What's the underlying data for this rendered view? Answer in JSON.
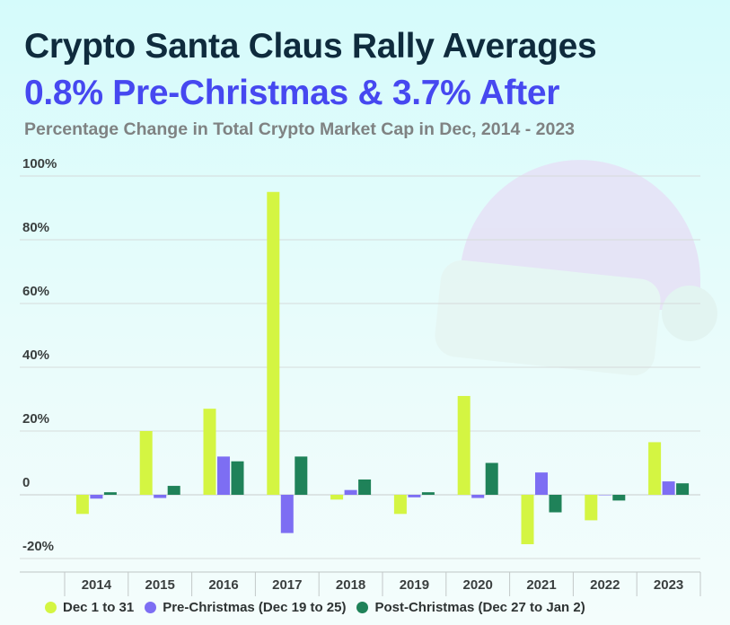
{
  "header": {
    "title": "Crypto Santa Claus Rally Averages",
    "subtitle": "0.8% Pre-Christmas & 3.7% After",
    "caption": "Percentage Change in Total Crypto Market Cap in Dec, 2014 - 2023"
  },
  "colors": {
    "dec": "#d4f542",
    "pre": "#7d6ef3",
    "post": "#1f8259",
    "title": "#0f2b3d",
    "subtitle": "#4648f0"
  },
  "decoration": {
    "icon": "santa-hat-icon"
  },
  "chart_data": {
    "type": "bar",
    "categories": [
      "2014",
      "2015",
      "2016",
      "2017",
      "2018",
      "2019",
      "2020",
      "2021",
      "2022",
      "2023"
    ],
    "series": [
      {
        "name": "Dec 1 to 31",
        "values": [
          -6,
          20,
          27,
          95,
          -1.5,
          -6,
          31,
          -15.5,
          -8,
          16.5
        ]
      },
      {
        "name": "Pre-Christmas (Dec 19 to 25)",
        "values": [
          -1.2,
          -1,
          12,
          -12,
          1.5,
          -0.8,
          -1,
          7,
          0,
          4.2
        ]
      },
      {
        "name": "Post-Christmas (Dec 27 to Jan 2)",
        "values": [
          0.8,
          2.8,
          10.5,
          12,
          4.8,
          0.8,
          10,
          -5.5,
          -1.8,
          3.6
        ]
      }
    ],
    "yticks": [
      {
        "value": 100,
        "label": "100%"
      },
      {
        "value": 80,
        "label": "80%"
      },
      {
        "value": 60,
        "label": "60%"
      },
      {
        "value": 40,
        "label": "40%"
      },
      {
        "value": 20,
        "label": "20%"
      },
      {
        "value": 0,
        "label": "0"
      },
      {
        "value": -20,
        "label": "-20%"
      }
    ],
    "ylim": [
      -20,
      100
    ],
    "grid": true,
    "legend": "bottom"
  }
}
